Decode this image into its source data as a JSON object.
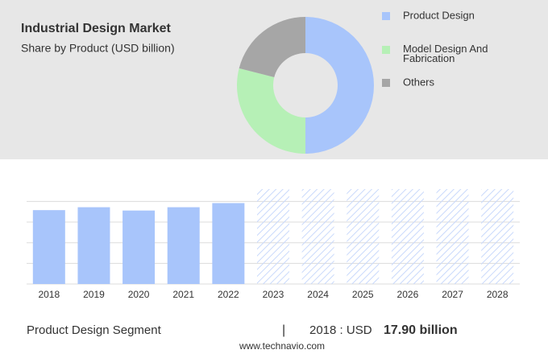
{
  "chart_data": [
    {
      "type": "donut",
      "title": "Industrial Design Market",
      "subtitle": "Share by Product (USD billion)",
      "categories": [
        "Product Design",
        "Model Design And Fabrication",
        "Others"
      ],
      "values": [
        50,
        29,
        21
      ],
      "colors": [
        "#a8c5fb",
        "#b6f0b6",
        "#a6a6a6"
      ]
    },
    {
      "type": "bar",
      "categories": [
        "2018",
        "2019",
        "2020",
        "2021",
        "2022",
        "2023",
        "2024",
        "2025",
        "2026",
        "2027",
        "2028"
      ],
      "values": [
        17.9,
        18.6,
        17.8,
        18.6,
        19.6,
        null,
        null,
        null,
        null,
        null,
        null
      ],
      "color": "#a8c5fb",
      "ylim": [
        0,
        23
      ],
      "yticks": [
        0,
        5,
        10,
        15,
        20
      ],
      "grid": true,
      "footer": {
        "segment": "Product Design Segment",
        "separator": "|",
        "year_label": "2018 : USD",
        "value_label": "17.90 billion",
        "source": "www.technavio.com"
      }
    }
  ]
}
